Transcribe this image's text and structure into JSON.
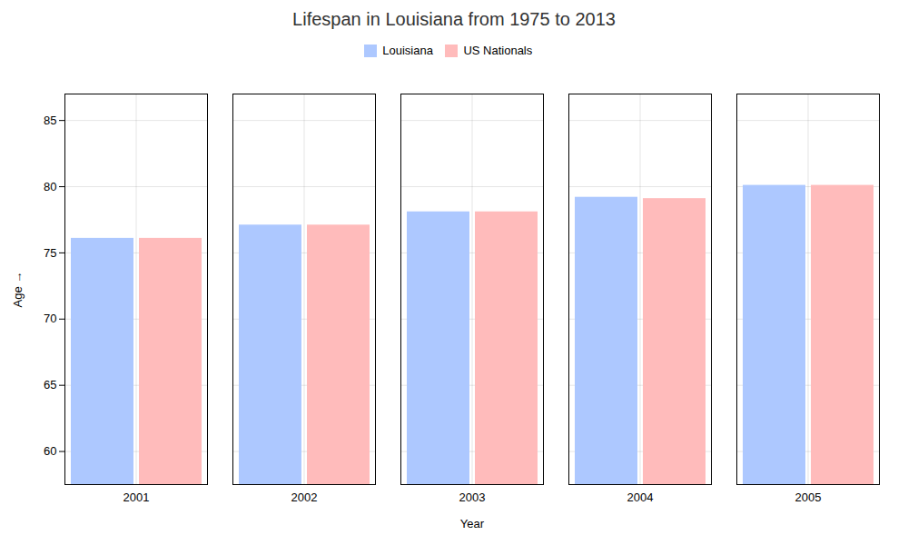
{
  "chart_data": {
    "type": "bar",
    "title": "Lifespan in Louisiana from 1975 to 2013",
    "xlabel": "Year",
    "ylabel": "Age",
    "categories": [
      "2001",
      "2002",
      "2003",
      "2004",
      "2005"
    ],
    "series": [
      {
        "name": "Louisiana",
        "color": "#adc8ff",
        "values": [
          76.1,
          77.1,
          78.1,
          79.2,
          80.1
        ]
      },
      {
        "name": "US Nationals",
        "color": "#ffbbbb",
        "values": [
          76.1,
          77.1,
          78.1,
          79.1,
          80.1
        ]
      }
    ],
    "ylim": [
      57.5,
      87
    ],
    "yticks": [
      60,
      65,
      70,
      75,
      80,
      85
    ],
    "grid": true,
    "legend": "top"
  }
}
